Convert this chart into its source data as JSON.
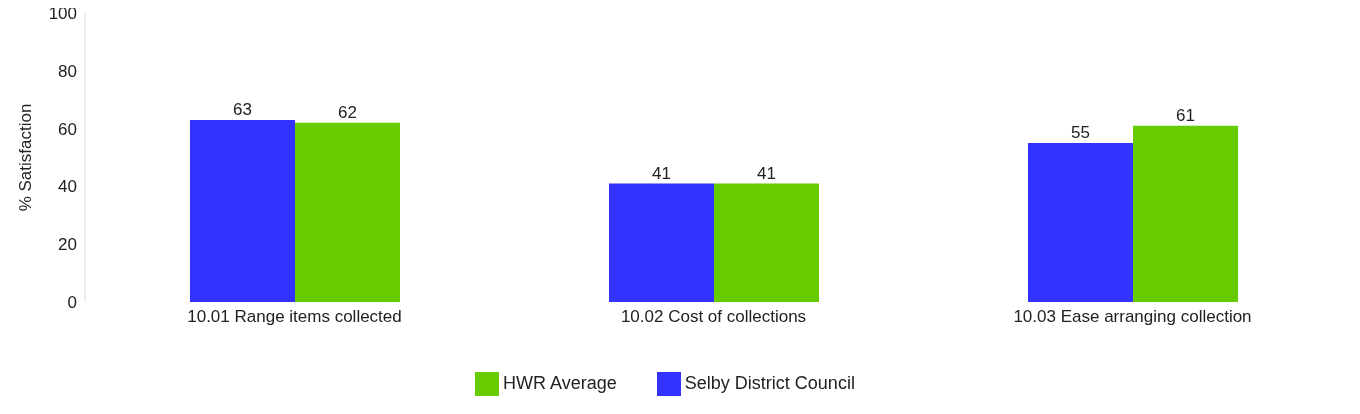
{
  "chart_data": {
    "type": "bar",
    "ylabel": "% Satisfaction",
    "categories": [
      "10.01 Range items collected",
      "10.02 Cost of collections",
      "10.03 Ease arranging collection"
    ],
    "series": [
      {
        "name": "Selby District Council",
        "color": "#3333ff",
        "values": [
          63,
          41,
          55
        ]
      },
      {
        "name": "HWR Average",
        "color": "#66cc00",
        "values": [
          62,
          41,
          61
        ]
      }
    ],
    "ylim": [
      0,
      100
    ],
    "yticks": [
      0,
      20,
      40,
      60,
      80,
      100
    ],
    "grid": false,
    "legend": "bottom",
    "data_labels": true
  }
}
